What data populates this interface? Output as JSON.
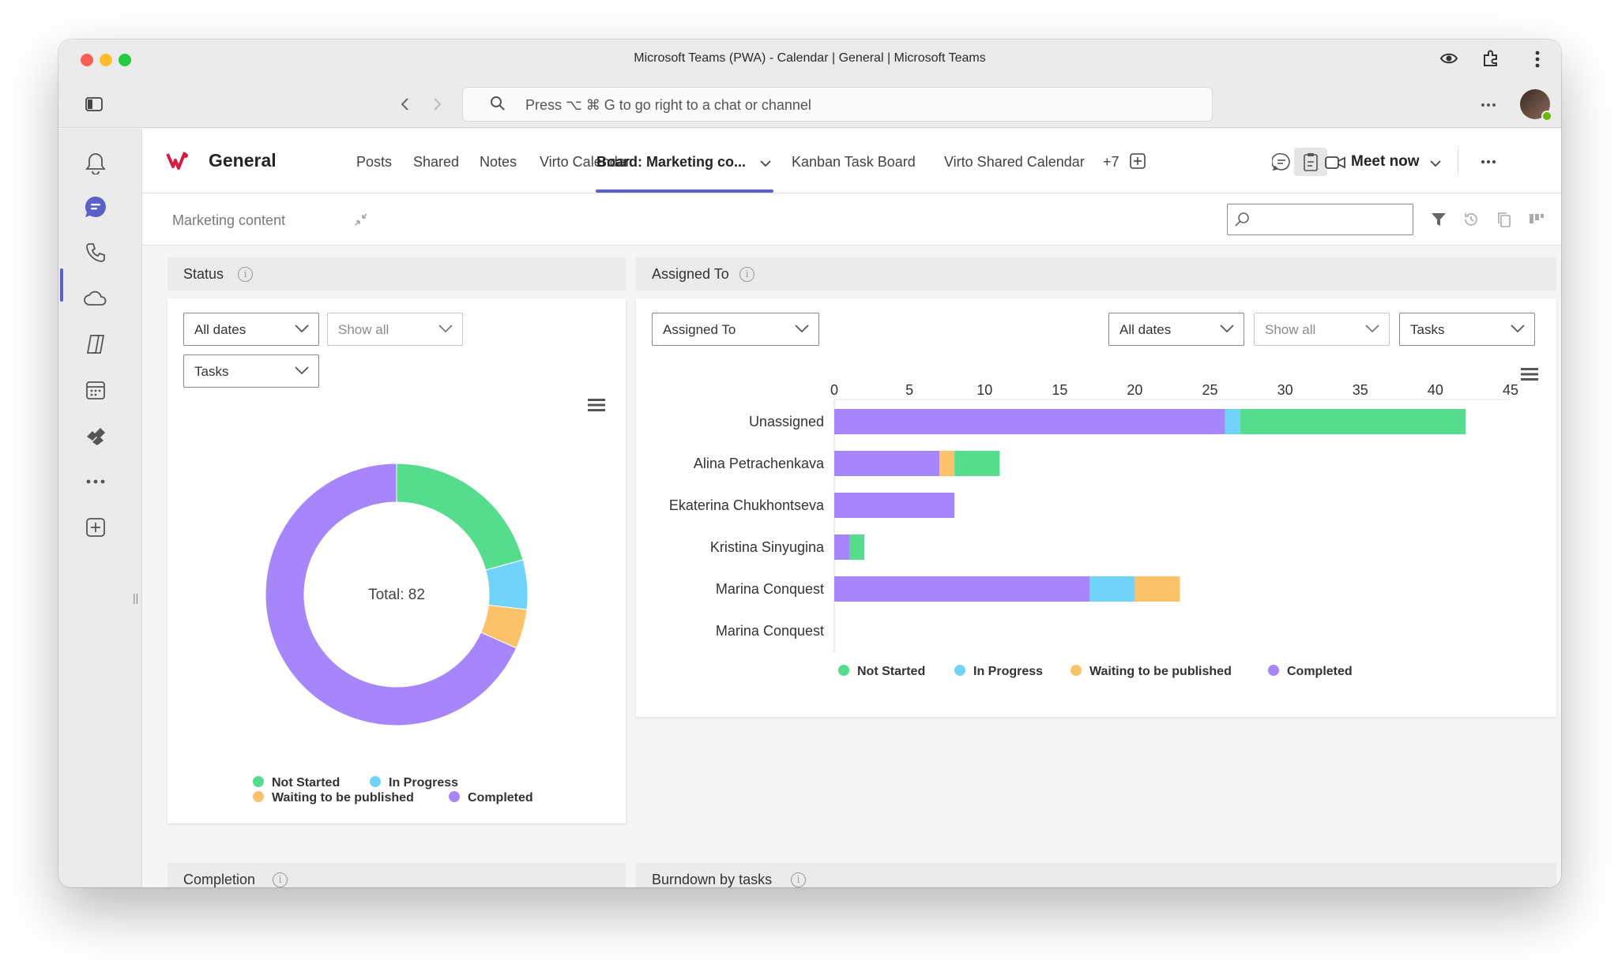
{
  "window": {
    "title": "Microsoft Teams (PWA) - Calendar | General | Microsoft Teams"
  },
  "search": {
    "placeholder": "Press ⌥ ⌘ G to go right to a chat or channel"
  },
  "icons": {
    "sidebar_toggle": "sidebar-icon",
    "back": "chevron-left-icon",
    "forward": "chevron-right-icon",
    "search": "search-icon",
    "eye": "eye-icon",
    "extensions": "puzzle-icon",
    "menu": "more-vertical-icon"
  },
  "rail": {
    "items": [
      "bell-icon",
      "chat-icon",
      "phone-icon",
      "onedrive-icon",
      "copilot-icon",
      "calendar-icon",
      "planner-icon",
      "more-icon",
      "add-app-icon"
    ]
  },
  "header": {
    "channel": "General",
    "tabs": [
      "Posts",
      "Shared",
      "Notes",
      "Virto Calendar",
      "Board: Marketing co...",
      "Kanban Task Board",
      "Virto Shared Calendar",
      "+7"
    ],
    "active_tab": "Board: Marketing co...",
    "meet_now": "Meet now"
  },
  "board": {
    "title": "Marketing content"
  },
  "colors": {
    "not_started": "#55dc8c",
    "in_progress": "#72d3fa",
    "waiting": "#fcc26a",
    "completed": "#a785fb",
    "accent": "#5b5fc7"
  },
  "status_panel": {
    "title": "Status",
    "filters": {
      "dates": "All dates",
      "show": "Show all",
      "type": "Tasks"
    },
    "total_label": "Total: 82"
  },
  "assigned_panel": {
    "title": "Assigned To",
    "filters": {
      "group": "Assigned To",
      "dates": "All dates",
      "show": "Show all",
      "type": "Tasks"
    }
  },
  "legend": [
    "Not Started",
    "In Progress",
    "Waiting to be published",
    "Completed"
  ],
  "bottom_sections": {
    "completion": "Completion",
    "burndown": "Burndown by tasks"
  },
  "chart_data": [
    {
      "type": "pie",
      "variant": "donut",
      "categories": [
        "Not Started",
        "In Progress",
        "Waiting to be published",
        "Completed"
      ],
      "values": [
        17,
        5,
        4,
        56
      ],
      "center_label": "Total: 82",
      "legend_position": "bottom"
    },
    {
      "type": "bar",
      "orientation": "horizontal",
      "stacked": true,
      "categories": [
        "Unassigned",
        "Alina Petrachenkava",
        "Ekaterina Chukhontseva",
        "Kristina Sinyugina",
        "Marina Conquest",
        "Marina Conquest"
      ],
      "series": [
        {
          "name": "Completed",
          "values": [
            26,
            7,
            8,
            1,
            17,
            0
          ]
        },
        {
          "name": "In Progress",
          "values": [
            1,
            0,
            0,
            0,
            3,
            0
          ]
        },
        {
          "name": "Waiting to be published",
          "values": [
            0,
            1,
            0,
            0,
            3,
            0
          ]
        },
        {
          "name": "Not Started",
          "values": [
            15,
            3,
            0,
            1,
            0,
            0
          ]
        }
      ],
      "xlim": [
        0,
        45
      ],
      "xticks": [
        0,
        5,
        10,
        15,
        20,
        25,
        30,
        35,
        40,
        45
      ],
      "legend_position": "bottom"
    }
  ]
}
